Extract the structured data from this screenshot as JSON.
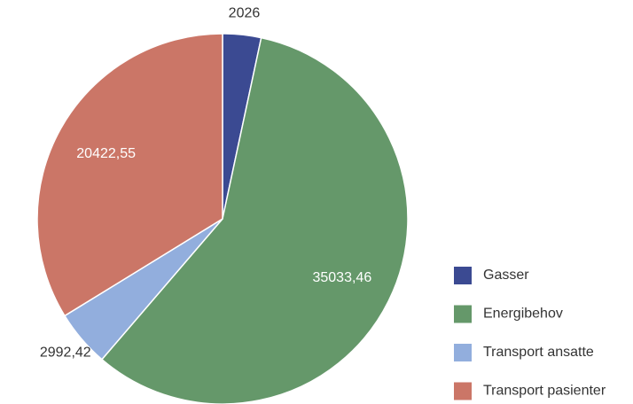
{
  "chart_data": {
    "type": "pie",
    "categories": [
      "Gasser",
      "Energibehov",
      "Transport ansatte",
      "Transport pasienter"
    ],
    "values": [
      2026,
      35033.46,
      2992.42,
      20422.55
    ],
    "value_labels": [
      "2026",
      "35033,46",
      "2992,42",
      "20422,55"
    ],
    "colors": [
      "#3b4a92",
      "#65986a",
      "#92aedd",
      "#cb7667"
    ],
    "legend": "right"
  }
}
